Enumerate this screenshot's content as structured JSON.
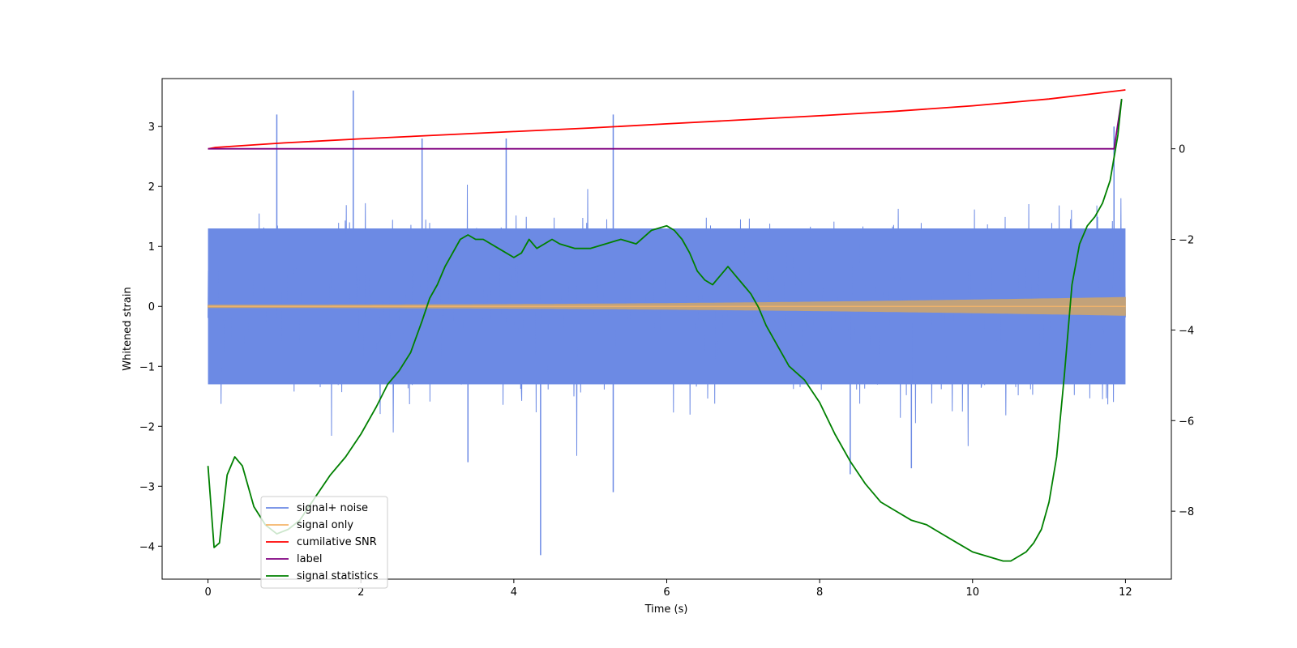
{
  "chart_data": {
    "type": "line",
    "title": "",
    "xlabel": "Time (s)",
    "ylabel": "Whitened strain",
    "xlim": [
      -0.6,
      12.6
    ],
    "ylim": [
      -4.55,
      3.8
    ],
    "y2lim": [
      -9.5,
      1.55
    ],
    "xticks": [
      0,
      2,
      4,
      6,
      8,
      10,
      12
    ],
    "yticks": [
      -4,
      -3,
      -2,
      -1,
      0,
      1,
      2,
      3
    ],
    "y2ticks": [
      -8,
      -6,
      -4,
      -2,
      0
    ],
    "grid": false,
    "legend_position": "lower-left",
    "series": [
      {
        "name": "signal+ noise",
        "axis": "left",
        "color": "#6c8ae4",
        "kind": "noise",
        "x_range": [
          0,
          12
        ],
        "band_typical": [
          -1.3,
          1.3
        ],
        "peaks": [
          {
            "x": 0.9,
            "y": 3.2
          },
          {
            "x": 1.9,
            "y": 3.6
          },
          {
            "x": 2.8,
            "y": 2.8
          },
          {
            "x": 3.9,
            "y": 2.8
          },
          {
            "x": 5.3,
            "y": 3.2
          },
          {
            "x": 11.85,
            "y": 3.0
          },
          {
            "x": 4.35,
            "y": -4.15
          },
          {
            "x": 5.3,
            "y": -3.1
          },
          {
            "x": 3.4,
            "y": -2.6
          },
          {
            "x": 8.4,
            "y": -2.8
          },
          {
            "x": 9.2,
            "y": -2.7
          }
        ]
      },
      {
        "name": "signal only",
        "axis": "left",
        "color": "#f5b56a",
        "kind": "chirp",
        "x_range": [
          0,
          12
        ],
        "amplitude_start": 0.02,
        "amplitude_end": 0.15
      },
      {
        "name": "cumilative SNR",
        "axis": "right",
        "color": "#ff0000",
        "kind": "line",
        "x": [
          0,
          0.1,
          1,
          2,
          3,
          4,
          5,
          6,
          7,
          8,
          9,
          10,
          11,
          11.5,
          12
        ],
        "y": [
          0,
          0.03,
          0.13,
          0.22,
          0.3,
          0.38,
          0.46,
          0.55,
          0.64,
          0.73,
          0.83,
          0.95,
          1.1,
          1.2,
          1.3
        ]
      },
      {
        "name": "label",
        "axis": "right",
        "color": "#800080",
        "kind": "line",
        "x": [
          0,
          11.85,
          11.95
        ],
        "y": [
          0,
          0,
          1.1
        ]
      },
      {
        "name": "signal statistics",
        "axis": "right",
        "color": "#008000",
        "kind": "line",
        "x": [
          0,
          0.08,
          0.15,
          0.25,
          0.35,
          0.45,
          0.6,
          0.75,
          0.9,
          1.05,
          1.2,
          1.4,
          1.6,
          1.8,
          2.0,
          2.2,
          2.35,
          2.5,
          2.65,
          2.8,
          2.9,
          3.0,
          3.1,
          3.2,
          3.3,
          3.4,
          3.5,
          3.6,
          3.8,
          4.0,
          4.1,
          4.2,
          4.3,
          4.4,
          4.5,
          4.6,
          4.8,
          5.0,
          5.2,
          5.4,
          5.6,
          5.8,
          6.0,
          6.1,
          6.2,
          6.3,
          6.4,
          6.5,
          6.6,
          6.7,
          6.8,
          6.9,
          7.0,
          7.1,
          7.2,
          7.3,
          7.4,
          7.5,
          7.6,
          7.8,
          8.0,
          8.2,
          8.4,
          8.6,
          8.8,
          9.0,
          9.2,
          9.4,
          9.6,
          9.8,
          10.0,
          10.2,
          10.4,
          10.5,
          10.6,
          10.7,
          10.8,
          10.9,
          11.0,
          11.1,
          11.2,
          11.3,
          11.4,
          11.5,
          11.6,
          11.7,
          11.8,
          11.9,
          11.95
        ],
        "y": [
          -7.0,
          -8.8,
          -8.7,
          -7.2,
          -6.8,
          -7.0,
          -7.9,
          -8.3,
          -8.5,
          -8.4,
          -8.2,
          -7.7,
          -7.2,
          -6.8,
          -6.3,
          -5.7,
          -5.2,
          -4.9,
          -4.5,
          -3.8,
          -3.3,
          -3.0,
          -2.6,
          -2.3,
          -2.0,
          -1.9,
          -2.0,
          -2.0,
          -2.2,
          -2.4,
          -2.3,
          -2.0,
          -2.2,
          -2.1,
          -2.0,
          -2.1,
          -2.2,
          -2.2,
          -2.1,
          -2.0,
          -2.1,
          -1.8,
          -1.7,
          -1.8,
          -2.0,
          -2.3,
          -2.7,
          -2.9,
          -3.0,
          -2.8,
          -2.6,
          -2.8,
          -3.0,
          -3.2,
          -3.5,
          -3.9,
          -4.2,
          -4.5,
          -4.8,
          -5.1,
          -5.6,
          -6.3,
          -6.9,
          -7.4,
          -7.8,
          -8.0,
          -8.2,
          -8.3,
          -8.5,
          -8.7,
          -8.9,
          -9.0,
          -9.1,
          -9.1,
          -9.0,
          -8.9,
          -8.7,
          -8.4,
          -7.8,
          -6.8,
          -5.0,
          -3.0,
          -2.1,
          -1.7,
          -1.5,
          -1.2,
          -0.7,
          0.3,
          1.1
        ]
      }
    ]
  }
}
